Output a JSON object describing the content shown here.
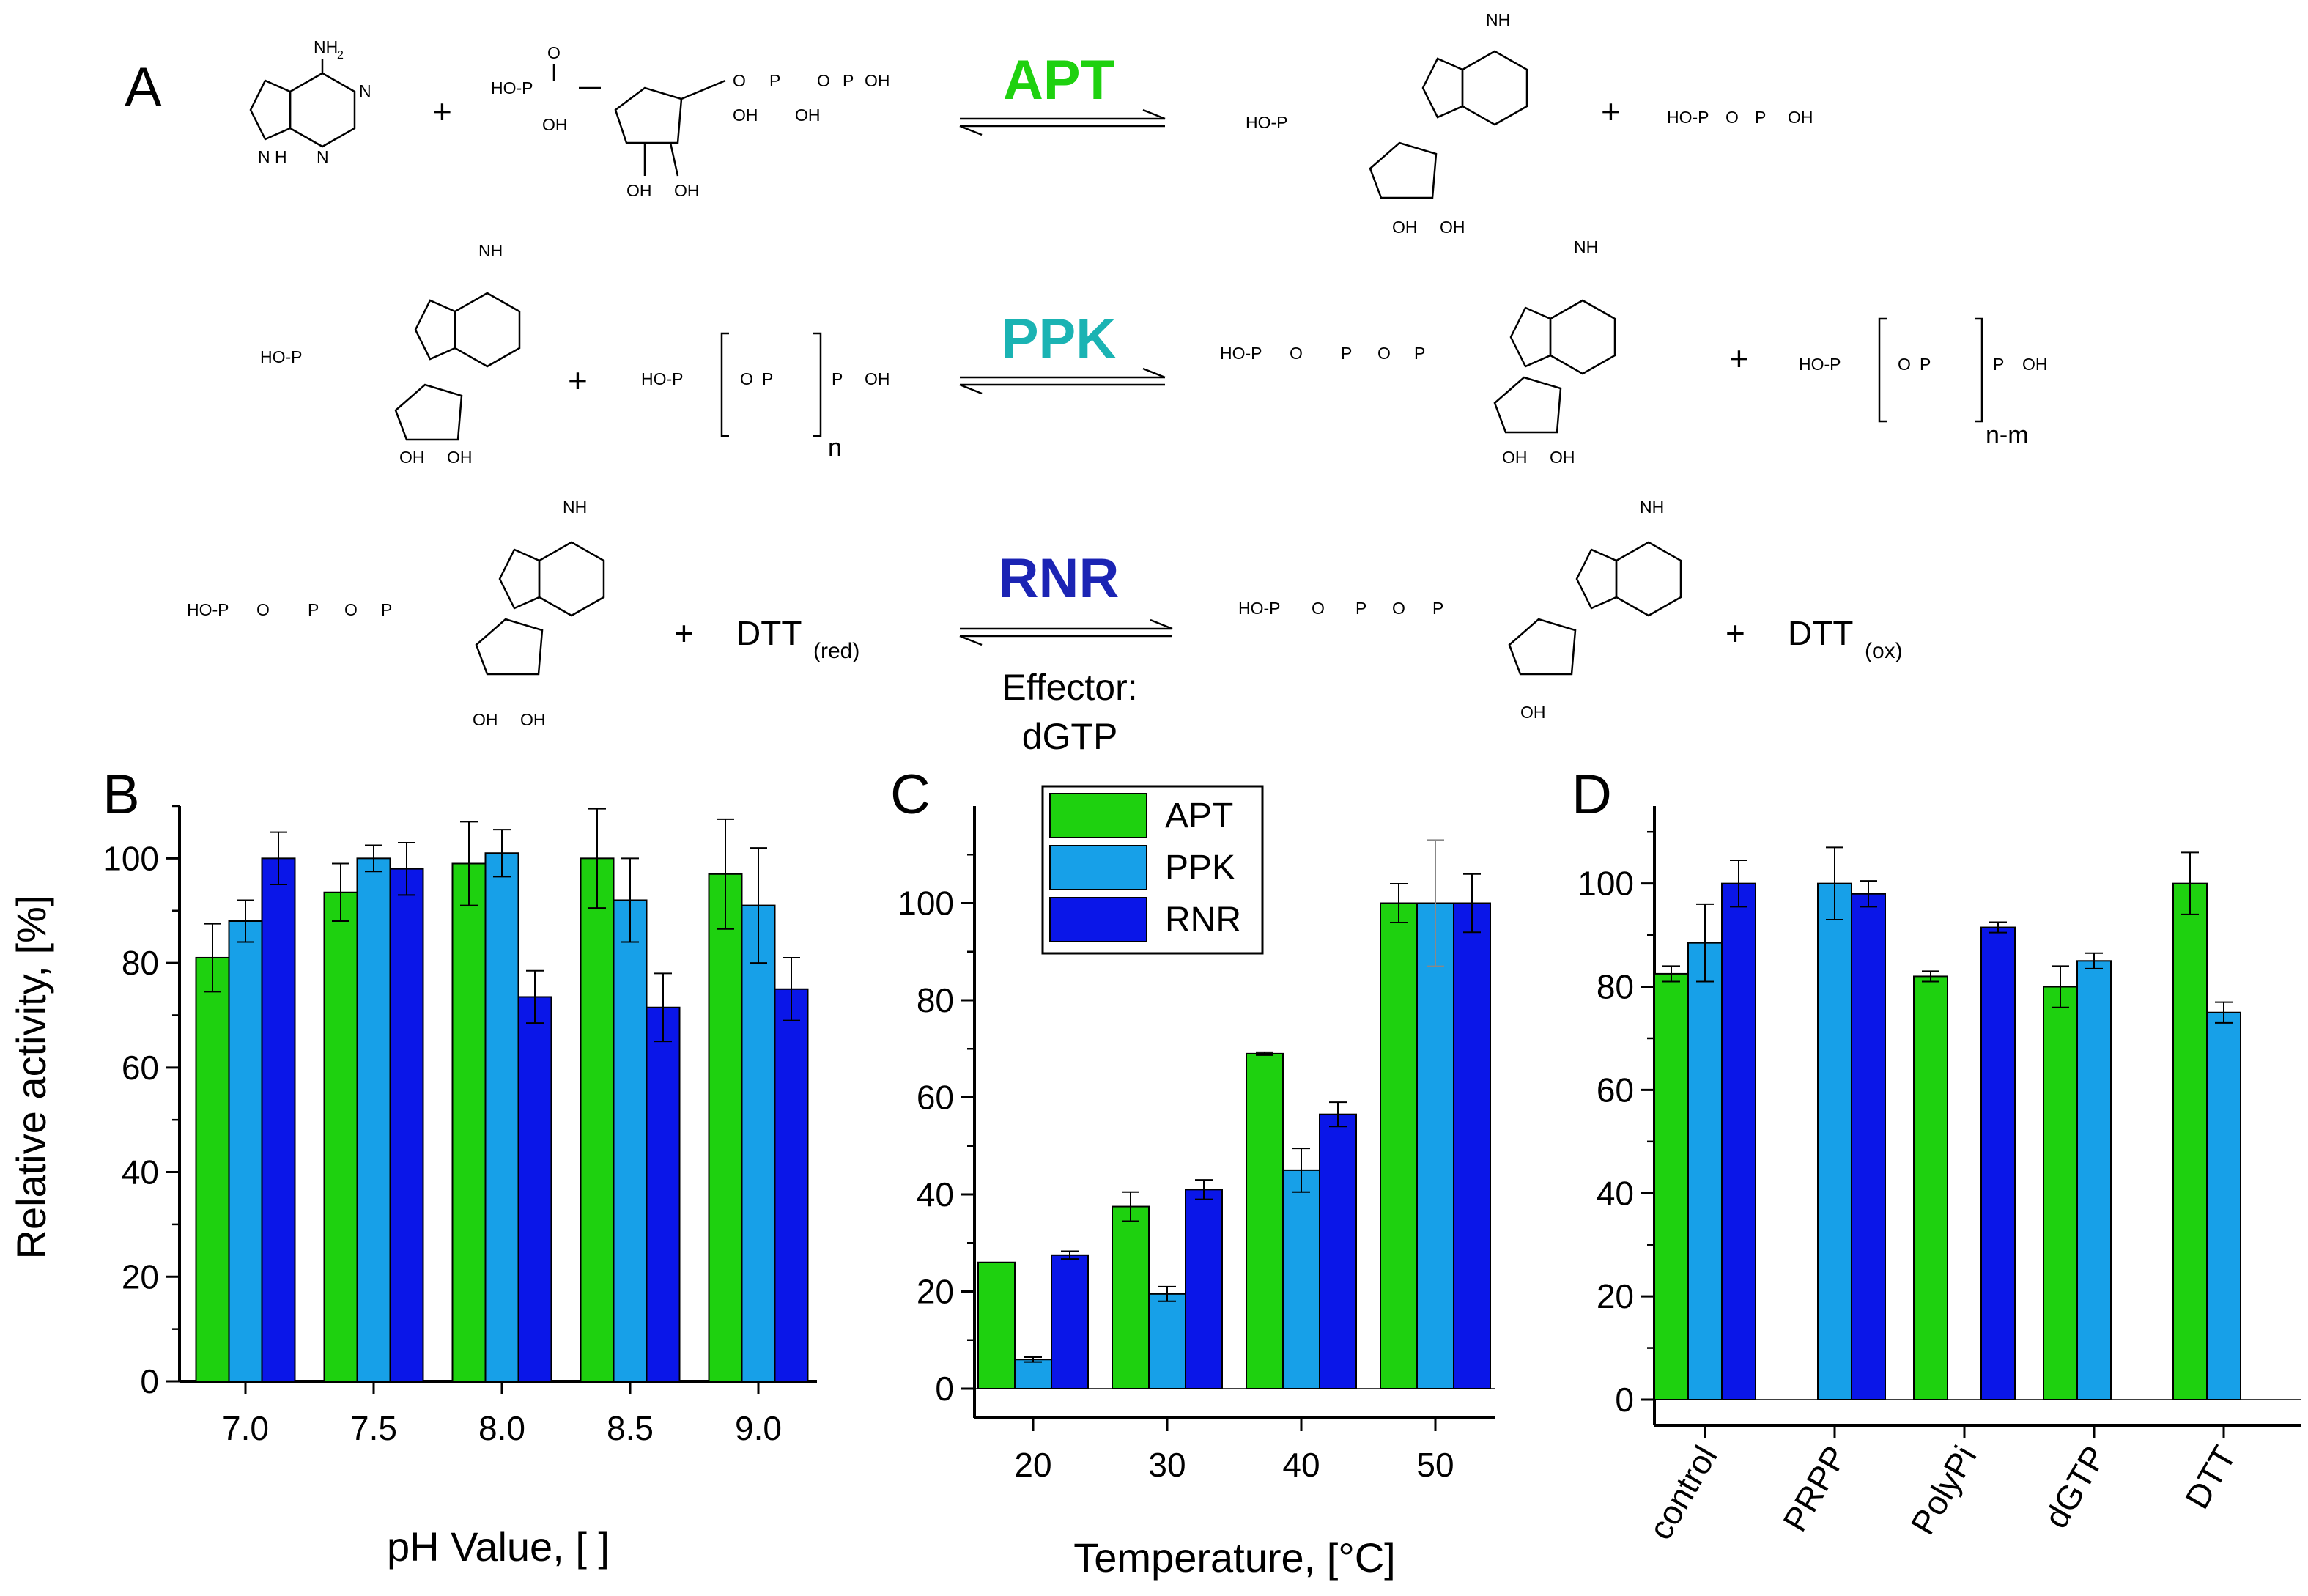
{
  "colors": {
    "APT": "#1ed10f",
    "PPK": "#17a0e8",
    "RNR": "#0a16e8",
    "edge": "#000000",
    "rnr_title": "#1b24b4",
    "ppk_title": "#1ab3b3"
  },
  "panel_labels": {
    "a": "A",
    "b": "B",
    "c": "C",
    "d": "D"
  },
  "reactions": {
    "apt": {
      "enzyme": "APT",
      "plus1": "+",
      "plus2": "+"
    },
    "ppk": {
      "enzyme": "PPK",
      "plus1": "+",
      "plus2": "+",
      "n": "n",
      "nm": "n-m"
    },
    "rnr": {
      "enzyme": "RNR",
      "plus1": "+",
      "plus2": "+",
      "dtt": "DTT",
      "red": "(red)",
      "ox": "(ox)",
      "effector_line1": "Effector:",
      "effector_line2": "dGTP"
    }
  },
  "chem": {
    "nh2": "NH",
    "sub2": "2",
    "n": "N",
    "o": "O",
    "p": "P",
    "oh": "OH",
    "ho": "HO",
    "ho_p": "HO-P",
    "nh": "N H"
  },
  "chart_data": [
    {
      "panel": "B",
      "type": "bar",
      "categories": [
        "7.0",
        "7.5",
        "8.0",
        "8.5",
        "9.0"
      ],
      "series": [
        {
          "name": "APT",
          "values": [
            81,
            93.5,
            99,
            100,
            97
          ],
          "errors": [
            6.5,
            5.5,
            8,
            9.5,
            10.5
          ]
        },
        {
          "name": "PPK",
          "values": [
            88,
            100,
            101,
            92,
            91
          ],
          "errors": [
            4,
            2.5,
            4.5,
            8,
            11
          ]
        },
        {
          "name": "RNR",
          "values": [
            100,
            98,
            73.5,
            71.5,
            75
          ],
          "errors": [
            5,
            5,
            5,
            6.5,
            6
          ]
        }
      ],
      "ylabel": "Relative activity, [%]",
      "xlabel": "pH Value, [ ]",
      "ylim": [
        0,
        110
      ],
      "yticks": [
        "0",
        "20",
        "40",
        "60",
        "80",
        "100"
      ]
    },
    {
      "panel": "C",
      "type": "bar",
      "categories": [
        "20",
        "30",
        "40",
        "50"
      ],
      "series": [
        {
          "name": "APT",
          "values": [
            26,
            37.5,
            69,
            100
          ],
          "errors": [
            0,
            3,
            0.3,
            4
          ]
        },
        {
          "name": "PPK",
          "values": [
            6,
            19.5,
            45,
            100
          ],
          "errors": [
            0.5,
            1.5,
            4.5,
            13
          ]
        },
        {
          "name": "RNR",
          "values": [
            27.5,
            41,
            56.5,
            100
          ],
          "errors": [
            0.8,
            2,
            2.5,
            6
          ]
        }
      ],
      "xlabel": "Temperature, [°C]",
      "ylim": [
        0,
        120
      ],
      "yticks": [
        "0",
        "20",
        "40",
        "60",
        "80",
        "100"
      ],
      "legend": {
        "position": "top-left",
        "entries": [
          "APT",
          "PPK",
          "RNR"
        ]
      }
    },
    {
      "panel": "D",
      "type": "bar",
      "categories": [
        "control",
        "PRPP",
        "PolyPi",
        "dGTP",
        "DTT"
      ],
      "series": [
        {
          "name": "APT",
          "values": [
            82.5,
            null,
            82,
            80,
            100
          ],
          "errors": [
            1.5,
            0,
            1,
            4,
            6
          ]
        },
        {
          "name": "PPK",
          "values": [
            88.5,
            100,
            null,
            85,
            75
          ],
          "errors": [
            7.5,
            7,
            0,
            1.5,
            2
          ]
        },
        {
          "name": "RNR",
          "values": [
            100,
            98,
            91.5,
            null,
            null
          ],
          "errors": [
            4.5,
            2.5,
            1,
            0,
            0
          ]
        }
      ],
      "ylim": [
        0,
        115
      ],
      "yticks": [
        "0",
        "20",
        "40",
        "60",
        "80",
        "100"
      ]
    }
  ]
}
